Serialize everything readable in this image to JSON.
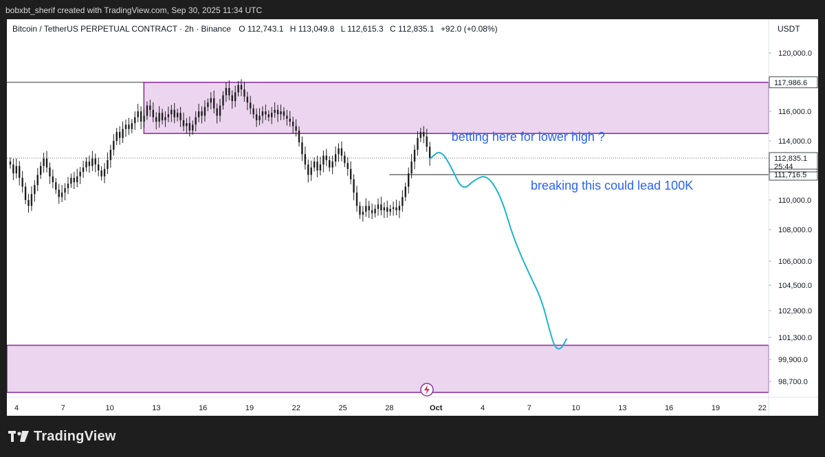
{
  "credit": "bobxbt_sherif created with TradingView.com, Sep 30, 2025 11:34 UTC",
  "brand": "TradingView",
  "colors": {
    "zone_fill": "#ecd5ef",
    "zone_border": "#8b33a0",
    "path": "#1ab4cf",
    "annotation": "#2962ff",
    "candle": "#1f1f1f"
  },
  "chart_data": {
    "type": "candlestick",
    "title": "Bitcoin / TetherUS PERPETUAL CONTRACT · 2h · Binance",
    "ohlc": {
      "o_label": "O",
      "o": "112,743.1",
      "h_label": "H",
      "h": "113,049.8",
      "l_label": "L",
      "l": "112,615.3",
      "c_label": "C",
      "c": "112,835.1",
      "change": "+92.0 (+0.08%)"
    },
    "currency": "USDT",
    "y_ticks": [
      {
        "value": 120000,
        "label": "120,000.0"
      },
      {
        "value": 116000,
        "label": "116,000.0"
      },
      {
        "value": 114000,
        "label": "114,000.0"
      },
      {
        "value": 110000,
        "label": "110,000.0"
      },
      {
        "value": 108000,
        "label": "108,000.0"
      },
      {
        "value": 106000,
        "label": "106,000.0"
      },
      {
        "value": 104500,
        "label": "104,500.0"
      },
      {
        "value": 102900,
        "label": "102,900.0"
      },
      {
        "value": 101300,
        "label": "101,300.0"
      },
      {
        "value": 99900,
        "label": "99,900.0"
      },
      {
        "value": 98700,
        "label": "98,700.0"
      }
    ],
    "x_ticks": [
      {
        "day": 4,
        "label": "4"
      },
      {
        "day": 7,
        "label": "7"
      },
      {
        "day": 10,
        "label": "10"
      },
      {
        "day": 13,
        "label": "13"
      },
      {
        "day": 16,
        "label": "16"
      },
      {
        "day": 19,
        "label": "19"
      },
      {
        "day": 22,
        "label": "22"
      },
      {
        "day": 25,
        "label": "25"
      },
      {
        "day": 28,
        "label": "28"
      },
      {
        "day": 31,
        "label": "Oct"
      },
      {
        "day": 34,
        "label": "4"
      },
      {
        "day": 37,
        "label": "7"
      },
      {
        "day": 40,
        "label": "10"
      },
      {
        "day": 43,
        "label": "13"
      },
      {
        "day": 46,
        "label": "16"
      },
      {
        "day": 49,
        "label": "19"
      },
      {
        "day": 52,
        "label": "22"
      }
    ],
    "price_labels": {
      "zone_top": "117,986.6",
      "current": "112,835.1",
      "countdown": "25:44",
      "level": "111,716.5"
    },
    "levels": {
      "supply_top": 117986.6,
      "supply_bottom": 114500,
      "demand_top": 100800,
      "demand_bottom": 98100,
      "support": 111716.5,
      "current": 112835.1
    },
    "supply_zone_start_day": 12.2,
    "support_line_start_day": 28,
    "candles_close": [
      112400,
      111800,
      112300,
      111500,
      110900,
      110000,
      109600,
      110400,
      111000,
      111700,
      112300,
      112800,
      112200,
      111600,
      111200,
      110700,
      110200,
      110500,
      110800,
      111100,
      111500,
      111200,
      111600,
      111900,
      112200,
      112600,
      112300,
      112800,
      112400,
      112000,
      111600,
      112100,
      112700,
      113400,
      114000,
      114600,
      114200,
      114800,
      115100,
      114800,
      115200,
      115600,
      116000,
      115300,
      115700,
      116400,
      116100,
      115600,
      115300,
      115900,
      115400,
      115600,
      115800,
      116100,
      115600,
      115900,
      115400,
      115000,
      115200,
      114700,
      115100,
      115600,
      116000,
      115700,
      116300,
      116600,
      116900,
      116200,
      115700,
      116400,
      117100,
      117600,
      117100,
      116700,
      117300,
      117800,
      117500,
      117000,
      116600,
      116200,
      115800,
      115400,
      115700,
      116000,
      115800,
      115600,
      115900,
      116100,
      115800,
      116000,
      115700,
      115500,
      115300,
      115000,
      114700,
      113900,
      113100,
      112400,
      111700,
      112200,
      112600,
      112000,
      112400,
      113000,
      112700,
      112200,
      112600,
      113100,
      113500,
      113000,
      112500,
      112100,
      111400,
      110500,
      109600,
      109000,
      109200,
      109600,
      109300,
      109100,
      109400,
      109700,
      109300,
      109500,
      109200,
      109400,
      109500,
      109300,
      109600,
      110200,
      110900,
      111800,
      112600,
      113400,
      114200,
      114600,
      114300,
      113600,
      112835
    ],
    "candles_start_day": 3.6,
    "candles_end_day": 30.6,
    "projection": [
      {
        "day": 30.65,
        "price": 112835
      },
      {
        "day": 31.3,
        "price": 113400
      },
      {
        "day": 32.0,
        "price": 112200
      },
      {
        "day": 32.7,
        "price": 110600
      },
      {
        "day": 33.5,
        "price": 111400
      },
      {
        "day": 34.3,
        "price": 111700
      },
      {
        "day": 35.2,
        "price": 110200
      },
      {
        "day": 36.0,
        "price": 107400
      },
      {
        "day": 37.0,
        "price": 105200
      },
      {
        "day": 37.8,
        "price": 103600
      },
      {
        "day": 38.4,
        "price": 101400
      },
      {
        "day": 38.7,
        "price": 100600
      },
      {
        "day": 39.05,
        "price": 100550
      },
      {
        "day": 39.4,
        "price": 101200
      }
    ],
    "annotations": [
      {
        "text": "betting here for lower high ?",
        "day": 32.0,
        "price": 114000
      },
      {
        "text": "breaking this could lead 100K",
        "day": 37.1,
        "price": 110700
      }
    ]
  }
}
